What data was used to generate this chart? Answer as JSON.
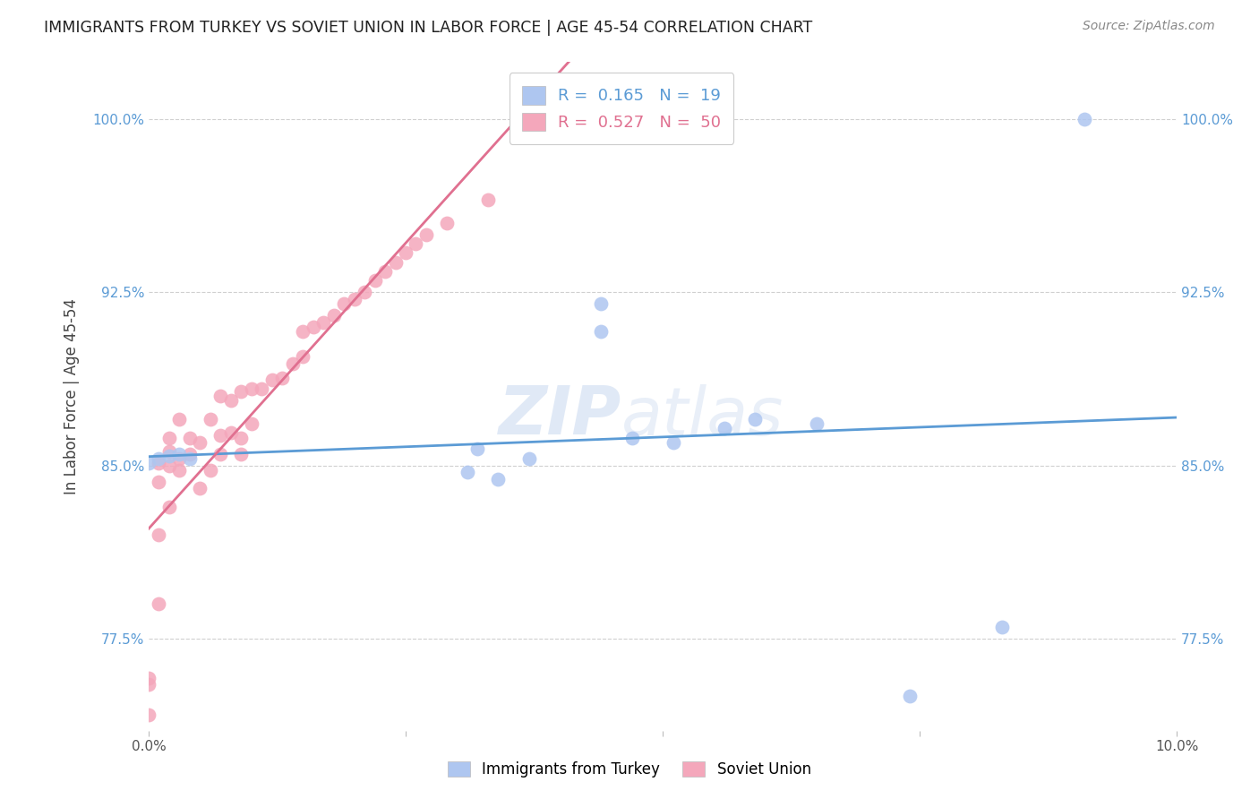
{
  "title": "IMMIGRANTS FROM TURKEY VS SOVIET UNION IN LABOR FORCE | AGE 45-54 CORRELATION CHART",
  "source": "Source: ZipAtlas.com",
  "ylabel": "In Labor Force | Age 45-54",
  "xlim": [
    0.0,
    0.1
  ],
  "ylim": [
    0.735,
    1.025
  ],
  "turkey_color": "#aec6f0",
  "soviet_color": "#f4a7bb",
  "turkey_line_color": "#5b9bd5",
  "soviet_line_color": "#e07090",
  "turkey_R": 0.165,
  "turkey_N": 19,
  "soviet_R": 0.527,
  "soviet_N": 50,
  "watermark_text": "ZIP",
  "watermark_text2": "atlas",
  "turkey_scatter_x": [
    0.0,
    0.001,
    0.002,
    0.003,
    0.004,
    0.031,
    0.032,
    0.034,
    0.037,
    0.044,
    0.044,
    0.047,
    0.051,
    0.056,
    0.059,
    0.065,
    0.074,
    0.083,
    0.091
  ],
  "turkey_scatter_y": [
    0.851,
    0.853,
    0.854,
    0.855,
    0.853,
    0.847,
    0.857,
    0.844,
    0.853,
    0.92,
    0.908,
    0.862,
    0.86,
    0.866,
    0.87,
    0.868,
    0.75,
    0.78,
    1.0
  ],
  "soviet_scatter_x": [
    0.0,
    0.0,
    0.0,
    0.001,
    0.001,
    0.001,
    0.001,
    0.002,
    0.002,
    0.002,
    0.002,
    0.003,
    0.003,
    0.003,
    0.004,
    0.004,
    0.005,
    0.005,
    0.006,
    0.006,
    0.007,
    0.007,
    0.007,
    0.008,
    0.008,
    0.009,
    0.009,
    0.009,
    0.01,
    0.01,
    0.011,
    0.012,
    0.013,
    0.014,
    0.015,
    0.015,
    0.016,
    0.017,
    0.018,
    0.019,
    0.02,
    0.021,
    0.022,
    0.023,
    0.024,
    0.025,
    0.026,
    0.027,
    0.029,
    0.033
  ],
  "soviet_scatter_y": [
    0.742,
    0.755,
    0.758,
    0.79,
    0.82,
    0.843,
    0.851,
    0.832,
    0.85,
    0.856,
    0.862,
    0.848,
    0.853,
    0.87,
    0.855,
    0.862,
    0.84,
    0.86,
    0.848,
    0.87,
    0.855,
    0.863,
    0.88,
    0.864,
    0.878,
    0.855,
    0.862,
    0.882,
    0.868,
    0.883,
    0.883,
    0.887,
    0.888,
    0.894,
    0.897,
    0.908,
    0.91,
    0.912,
    0.915,
    0.92,
    0.922,
    0.925,
    0.93,
    0.934,
    0.938,
    0.942,
    0.946,
    0.95,
    0.955,
    0.965
  ]
}
